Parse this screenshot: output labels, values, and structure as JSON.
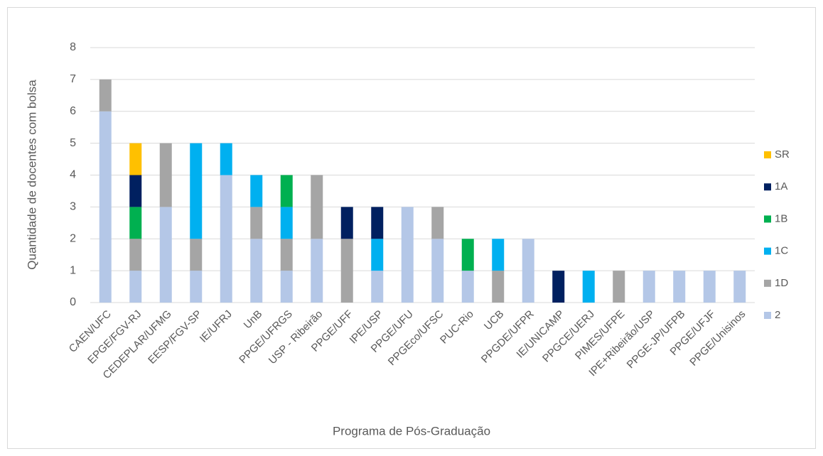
{
  "chart_data": {
    "type": "stacked-bar",
    "x_label": "Programa de Pós-Graduação",
    "y_label": "Quantidade de docentes com bolsa",
    "categories": [
      "CAEN/UFC",
      "EPGE/FGV-RJ",
      "CEDEPLAR/UFMG",
      "EESP/FGV-SP",
      "IE/UFRJ",
      "UnB",
      "PPGE/UFRGS",
      "USP - Ribeirão",
      "PPGE/UFF",
      "IPE/USP",
      "PPGE/UFU",
      "PPGEco/UFSC",
      "PUC-Rio",
      "UCB",
      "PPGDE/UFPR",
      "IE/UNICAMP",
      "PPGCE/UERJ",
      "PIMES/UFPE",
      "IPE+Ribeirão/USP",
      "PPGE-JP/UFPB",
      "PPGE/UFJF",
      "PPGE/Unisinos"
    ],
    "series": [
      {
        "name": "2",
        "color": "#b4c7e7",
        "values": [
          6,
          1,
          3,
          1,
          4,
          2,
          1,
          2,
          0,
          1,
          3,
          2,
          1,
          0,
          2,
          0,
          0,
          0,
          1,
          1,
          1,
          1
        ]
      },
      {
        "name": "1D",
        "color": "#a5a5a5",
        "values": [
          1,
          1,
          2,
          1,
          0,
          1,
          1,
          2,
          2,
          0,
          0,
          1,
          0,
          1,
          0,
          0,
          0,
          1,
          0,
          0,
          0,
          0
        ]
      },
      {
        "name": "1C",
        "color": "#00b0f0",
        "values": [
          0,
          0,
          0,
          3,
          1,
          1,
          1,
          0,
          0,
          1,
          0,
          0,
          0,
          1,
          0,
          0,
          1,
          0,
          0,
          0,
          0,
          0
        ]
      },
      {
        "name": "1B",
        "color": "#00b050",
        "values": [
          0,
          1,
          0,
          0,
          0,
          0,
          1,
          0,
          0,
          0,
          0,
          0,
          1,
          0,
          0,
          0,
          0,
          0,
          0,
          0,
          0,
          0
        ]
      },
      {
        "name": "1A",
        "color": "#002060",
        "values": [
          0,
          1,
          0,
          0,
          0,
          0,
          0,
          0,
          1,
          1,
          0,
          0,
          0,
          0,
          0,
          1,
          0,
          0,
          0,
          0,
          0,
          0
        ]
      },
      {
        "name": "SR",
        "color": "#ffc000",
        "values": [
          0,
          1,
          0,
          0,
          0,
          0,
          0,
          0,
          0,
          0,
          0,
          0,
          0,
          0,
          0,
          0,
          0,
          0,
          0,
          0,
          0,
          0
        ]
      }
    ],
    "ylim": [
      0,
      8
    ],
    "yticks": [
      0,
      1,
      2,
      3,
      4,
      5,
      6,
      7,
      8
    ],
    "grid": true,
    "legend": "right"
  }
}
